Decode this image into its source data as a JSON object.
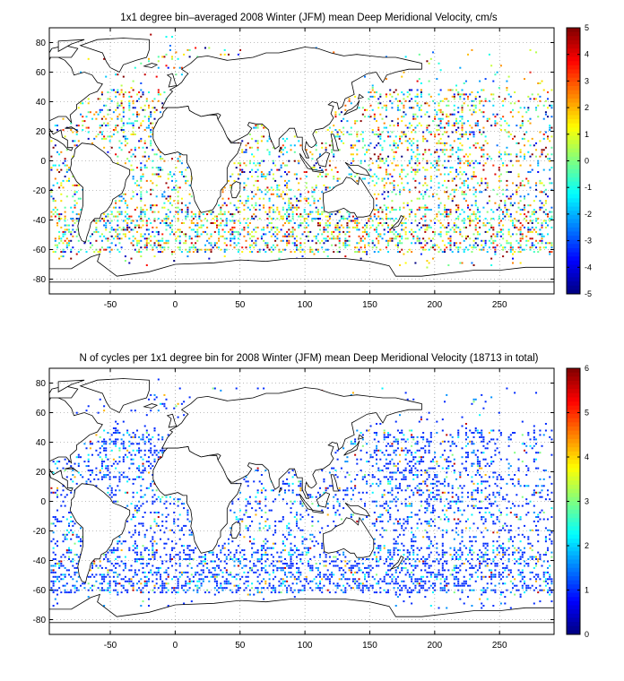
{
  "chart_data": [
    {
      "type": "heatmap",
      "title": "1x1 degree bin–averaged 2008 Winter (JFM) mean Deep Meridional Velocity, cm/s",
      "xlim": [
        -97,
        292
      ],
      "ylim": [
        -90,
        90
      ],
      "xticks": [
        -50,
        0,
        50,
        100,
        150,
        200,
        250
      ],
      "yticks": [
        80,
        60,
        40,
        20,
        0,
        -20,
        -40,
        -60,
        -80
      ],
      "grid": true,
      "colorbar": {
        "min": -5,
        "max": 5,
        "ticks": [
          5,
          4,
          3,
          2,
          1,
          0,
          -1,
          -2,
          -3,
          -4,
          -5
        ],
        "colormap": "jet",
        "placement": "right"
      },
      "data_description": "Sparse 1x1 degree bins of mean deep meridional velocity, values spanning -5 to 5 cm/s, concentrated in the Southern Ocean band (-30 to -60), tropical Pacific and North Atlantic."
    },
    {
      "type": "heatmap",
      "title": "N of cycles per 1x1 degree bin for 2008 Winter (JFM) mean Deep Meridional Velocity (18713 in total)",
      "xlim": [
        -97,
        292
      ],
      "ylim": [
        -90,
        90
      ],
      "xticks": [
        -50,
        0,
        50,
        100,
        150,
        200,
        250
      ],
      "yticks": [
        80,
        60,
        40,
        20,
        0,
        -20,
        -40,
        -60,
        -80
      ],
      "grid": true,
      "total_cycles": 18713,
      "colorbar": {
        "min": 0,
        "max": 6,
        "ticks": [
          6,
          5,
          4,
          3,
          2,
          1,
          0
        ],
        "colormap": "jet",
        "placement": "right"
      },
      "data_description": "Counts of float cycles per bin, mostly 1 (blue), with sparse higher counts (up to 6) scattered across the oceans."
    }
  ],
  "colors": {
    "background": "#ffffff",
    "coastline": "#000000",
    "grid": "#7f7f7f",
    "colormap_low": "#00007f",
    "colormap_mid": "#7fff7f",
    "colormap_high": "#7f0000"
  }
}
